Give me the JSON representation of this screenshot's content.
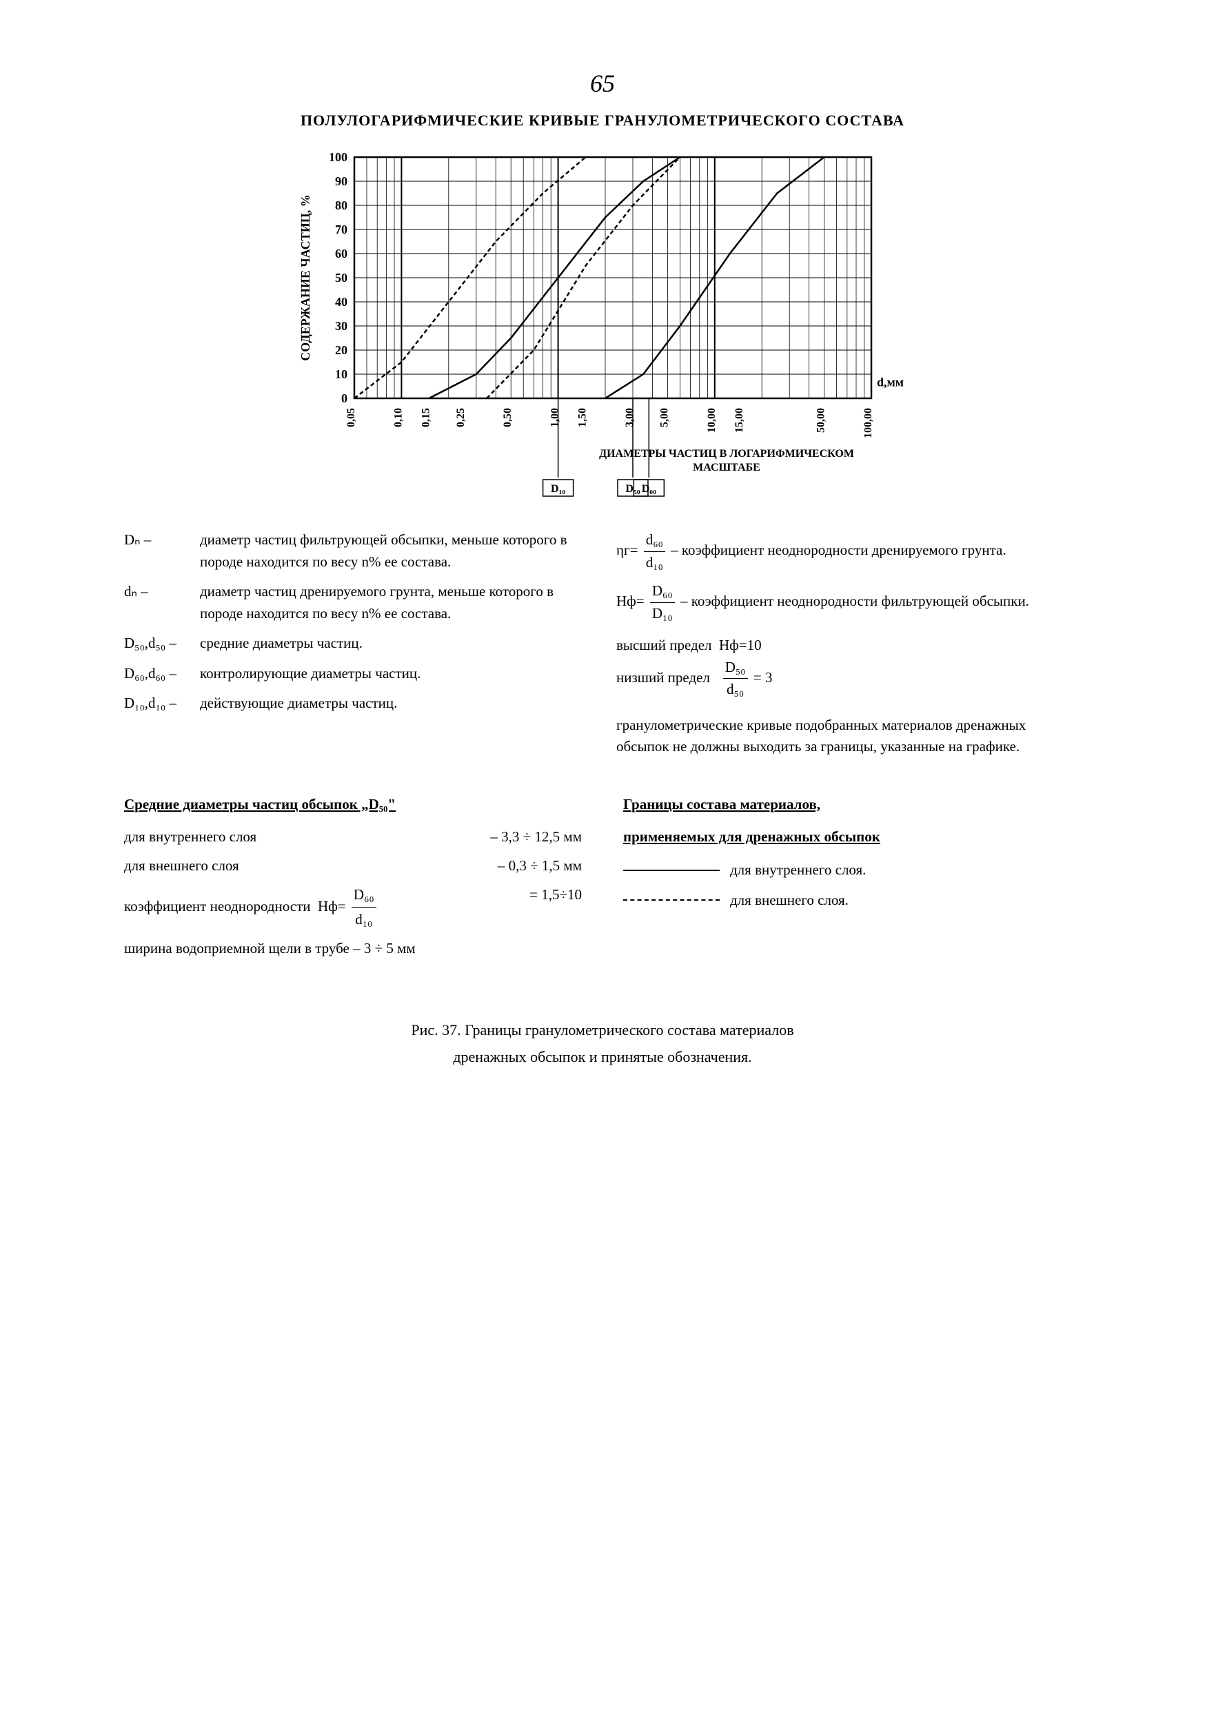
{
  "page_number": "65",
  "main_title": "ПОЛУЛОГАРИФМИЧЕСКИЕ КРИВЫЕ ГРАНУЛОМЕТРИЧЕСКОГО СОСТАВА",
  "chart": {
    "type": "line",
    "ylabel": "СОДЕРЖАНИЕ ЧАСТИЦ, %",
    "xlabel_right": "d,мм",
    "xaxis_caption": "ДИАМЕТРЫ ЧАСТИЦ В ЛОГАРИФМИЧЕСКОМ МАСШТАБЕ",
    "ylim": [
      0,
      100
    ],
    "ytick_step": 10,
    "yticks": [
      0,
      10,
      20,
      30,
      40,
      50,
      60,
      70,
      80,
      90,
      100
    ],
    "xticks_log": [
      0.05,
      0.1,
      0.15,
      0.25,
      0.5,
      1.0,
      1.5,
      3.0,
      5.0,
      10.0,
      15.0,
      50.0,
      100.0
    ],
    "xtick_labels": [
      "0,05",
      "0,10",
      "0,15",
      "0,25",
      "0,50",
      "1,00",
      "1,50",
      "3,00",
      "5,00",
      "10,00",
      "15,00",
      "50,00",
      "100,00"
    ],
    "background_color": "#ffffff",
    "axis_color": "#000000",
    "grid_color": "#000000",
    "curve1_solid": {
      "color": "#000000",
      "width": 2.5,
      "points": [
        [
          0.15,
          0
        ],
        [
          0.3,
          10
        ],
        [
          0.5,
          25
        ],
        [
          1.0,
          50
        ],
        [
          2.0,
          75
        ],
        [
          3.5,
          90
        ],
        [
          6.0,
          100
        ]
      ]
    },
    "curve2_solid": {
      "color": "#000000",
      "width": 2.5,
      "points": [
        [
          2.0,
          0
        ],
        [
          3.5,
          10
        ],
        [
          6.0,
          30
        ],
        [
          12.5,
          60
        ],
        [
          25,
          85
        ],
        [
          50,
          100
        ]
      ]
    },
    "curve1_dashed": {
      "color": "#000000",
      "width": 2.5,
      "dash": "6,4",
      "points": [
        [
          0.05,
          0
        ],
        [
          0.1,
          15
        ],
        [
          0.2,
          40
        ],
        [
          0.4,
          65
        ],
        [
          0.8,
          85
        ],
        [
          1.5,
          100
        ]
      ]
    },
    "curve2_dashed": {
      "color": "#000000",
      "width": 2.5,
      "dash": "6,4",
      "points": [
        [
          0.35,
          0
        ],
        [
          0.7,
          20
        ],
        [
          1.5,
          55
        ],
        [
          3.0,
          80
        ],
        [
          6.0,
          100
        ]
      ]
    },
    "markers": {
      "D10": "D₁₀",
      "D50": "D₅₀",
      "D60": "D₆₀"
    },
    "marker_positions": {
      "D10": 1.0,
      "D50": 3.0,
      "D60": 3.8
    }
  },
  "definitions_left": [
    {
      "sym": "Dₙ",
      "text": "диаметр частиц фильтрующей обсыпки, меньше которого в породе находится по весу n% ее состава."
    },
    {
      "sym": "dₙ",
      "text": "диаметр частиц дренируемого грунта, меньше которого в породе находится по весу n% ее состава."
    },
    {
      "sym": "D₅₀,d₅₀",
      "text": "средние диаметры частиц."
    },
    {
      "sym": "D₆₀,d₆₀",
      "text": "контролирующие диаметры частиц."
    },
    {
      "sym": "D₁₀,d₁₀",
      "text": "действующие диаметры частиц."
    }
  ],
  "definitions_right": {
    "eta_formula": {
      "sym": "ηг",
      "num": "d₆₀",
      "den": "d₁₀",
      "text": "коэффициент неоднородности дренируемого грунта."
    },
    "h_formula": {
      "sym": "Hф",
      "num": "D₆₀",
      "den": "D₁₀",
      "text": "коэффициент неоднородности фильтрующей обсыпки."
    },
    "limit_high_label": "высший предел",
    "limit_high_val": "Hф=10",
    "limit_low_label": "низший предел",
    "limit_low_num": "D₅₀",
    "limit_low_den": "d₅₀",
    "limit_low_val": "= 3",
    "note": "гранулометрические кривые подобранных материалов дренажных обсыпок не должны выходить за границы, указанные на графике."
  },
  "bottom_left": {
    "title": "Средние диаметры частиц обсыпок „D₅₀\"",
    "row1_label": "для внутреннего слоя",
    "row1_val": "– 3,3 ÷ 12,5 мм",
    "row2_label": "для внешнего слоя",
    "row2_val": "– 0,3 ÷  1,5 мм",
    "row3_label": "коэффициент неоднородности",
    "row3_formula_sym": "Hф=",
    "row3_num": "D₆₀",
    "row3_den": "d₁₀",
    "row3_val": "= 1,5÷10",
    "row4": "ширина водоприемной щели в трубе – 3 ÷ 5 мм"
  },
  "bottom_right": {
    "title1": "Границы состава материалов,",
    "title2": "применяемых для дренажных обсыпок",
    "legend1": "для внутреннего слоя.",
    "legend2": "для внешнего слоя."
  },
  "caption": {
    "line1": "Рис. 37. Границы гранулометрического состава материалов",
    "line2": "дренажных обсыпок и принятые обозначения."
  }
}
